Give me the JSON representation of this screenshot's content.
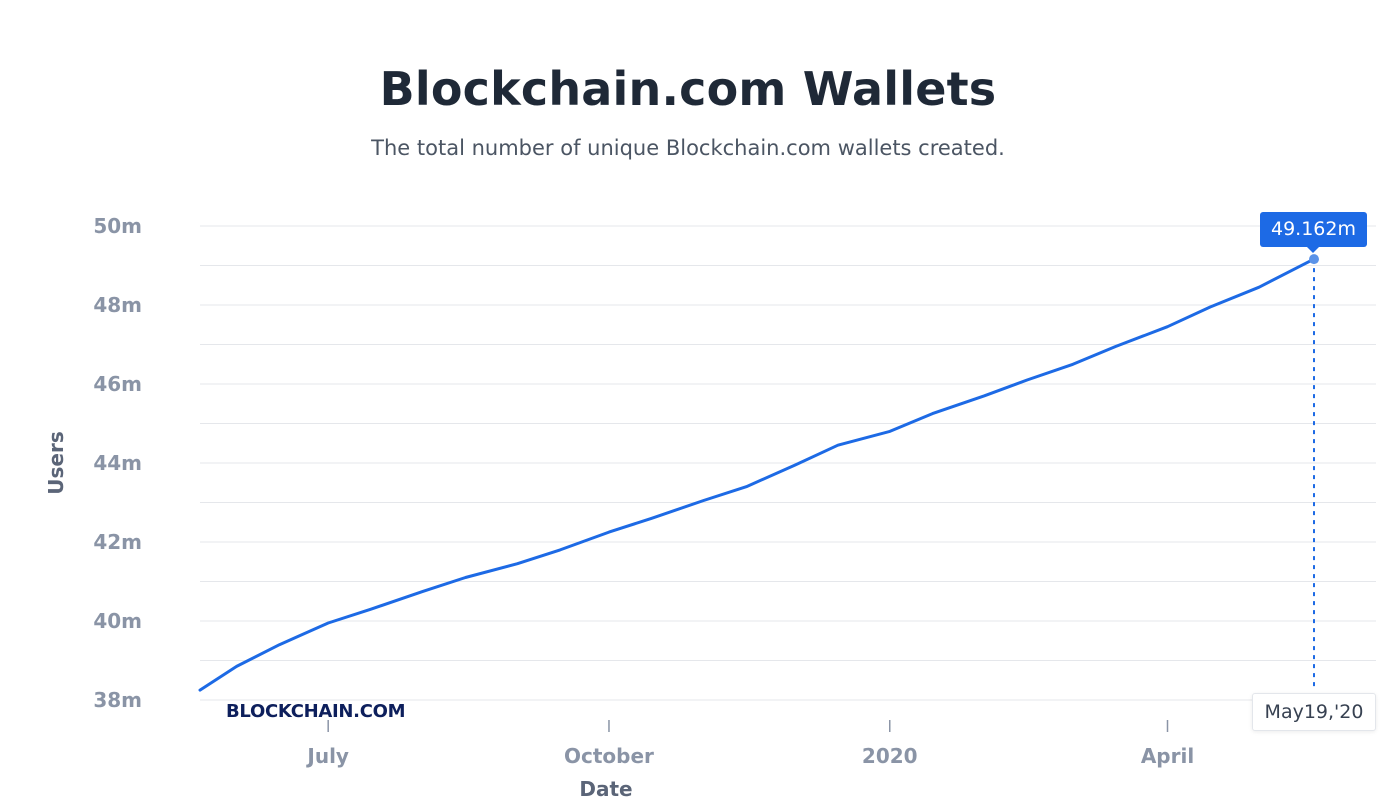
{
  "header": {
    "title": "Blockchain.com Wallets",
    "subtitle": "The total number of unique Blockchain.com wallets created."
  },
  "watermark": "BLOCKCHAIN.COM",
  "tooltip": {
    "value": "49.162m",
    "date": "May19,'20"
  },
  "colors": {
    "line": "#1d6ae5",
    "tooltip": "#1d6ae5"
  },
  "chart_data": {
    "type": "line",
    "title": "Blockchain.com Wallets",
    "subtitle": "The total number of unique Blockchain.com wallets created.",
    "xlabel": "Date",
    "ylabel": "Users",
    "x_ticks": [
      {
        "label": "July",
        "date": "2019-07-01"
      },
      {
        "label": "October",
        "date": "2019-10-01"
      },
      {
        "label": "2020",
        "date": "2020-01-01"
      },
      {
        "label": "April",
        "date": "2020-04-01"
      }
    ],
    "y_ticks": [
      {
        "label": "38m",
        "value": 38
      },
      {
        "label": "40m",
        "value": 40
      },
      {
        "label": "42m",
        "value": 42
      },
      {
        "label": "44m",
        "value": 44
      },
      {
        "label": "46m",
        "value": 46
      },
      {
        "label": "48m",
        "value": 48
      },
      {
        "label": "50m",
        "value": 50
      }
    ],
    "ylim": [
      38,
      50
    ],
    "xlim": [
      "2019-05-20",
      "2020-05-19"
    ],
    "grid": true,
    "series": [
      {
        "unit": "millions",
        "points": [
          [
            "2019-05-20",
            38.25
          ],
          [
            "2019-06-01",
            38.85
          ],
          [
            "2019-06-15",
            39.4
          ],
          [
            "2019-07-01",
            39.95
          ],
          [
            "2019-07-15",
            40.3
          ],
          [
            "2019-08-01",
            40.75
          ],
          [
            "2019-08-15",
            41.1
          ],
          [
            "2019-09-01",
            41.45
          ],
          [
            "2019-09-15",
            41.8
          ],
          [
            "2019-10-01",
            42.25
          ],
          [
            "2019-10-15",
            42.6
          ],
          [
            "2019-11-01",
            43.05
          ],
          [
            "2019-11-15",
            43.4
          ],
          [
            "2019-12-01",
            43.95
          ],
          [
            "2019-12-15",
            44.45
          ],
          [
            "2020-01-01",
            44.8
          ],
          [
            "2020-01-15",
            45.25
          ],
          [
            "2020-02-01",
            45.7
          ],
          [
            "2020-02-15",
            46.1
          ],
          [
            "2020-03-01",
            46.5
          ],
          [
            "2020-03-15",
            46.95
          ],
          [
            "2020-04-01",
            47.45
          ],
          [
            "2020-04-15",
            47.95
          ],
          [
            "2020-05-01",
            48.45
          ],
          [
            "2020-05-19",
            49.162
          ]
        ]
      }
    ]
  }
}
